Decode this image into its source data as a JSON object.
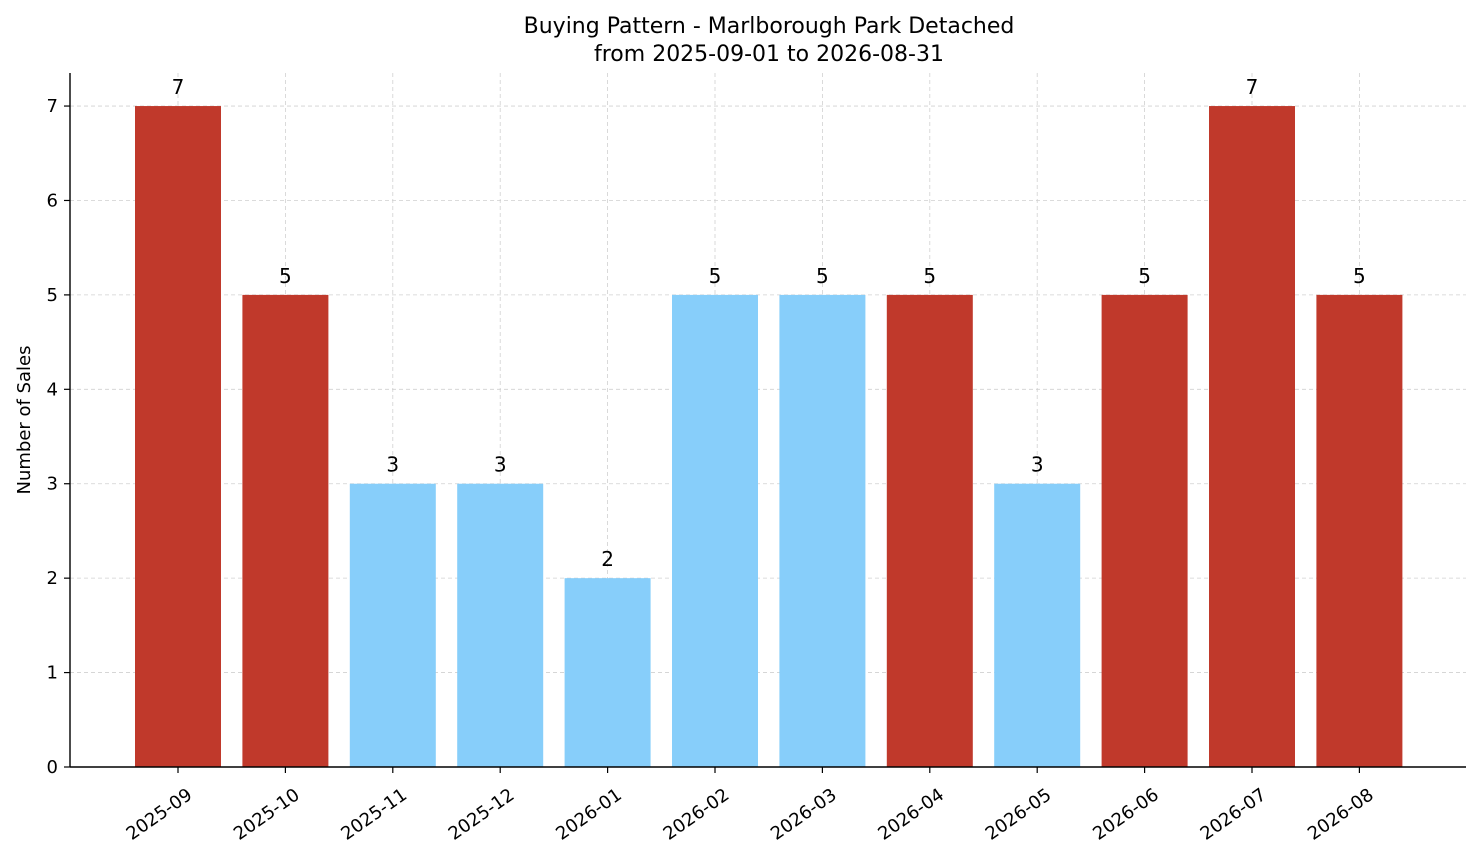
{
  "chart_data": {
    "type": "bar",
    "title": "Buying Pattern - Marlborough Park Detached",
    "subtitle": "from 2025-09-01 to 2026-08-31",
    "xlabel": "",
    "ylabel": "Number of Sales",
    "categories": [
      "2025-09",
      "2025-10",
      "2025-11",
      "2025-12",
      "2026-01",
      "2026-02",
      "2026-03",
      "2026-04",
      "2026-05",
      "2026-06",
      "2026-07",
      "2026-08"
    ],
    "values": [
      7,
      5,
      3,
      3,
      2,
      5,
      5,
      5,
      3,
      5,
      7,
      5
    ],
    "bar_colors": [
      "#c0392b",
      "#c0392b",
      "#87cefa",
      "#87cefa",
      "#87cefa",
      "#87cefa",
      "#87cefa",
      "#c0392b",
      "#87cefa",
      "#c0392b",
      "#c0392b",
      "#c0392b"
    ],
    "ylim": [
      0,
      7.35
    ],
    "yticks": [
      0,
      1,
      2,
      3,
      4,
      5,
      6,
      7
    ],
    "grid": true,
    "data_labels": true,
    "xtick_rotation": -35
  }
}
